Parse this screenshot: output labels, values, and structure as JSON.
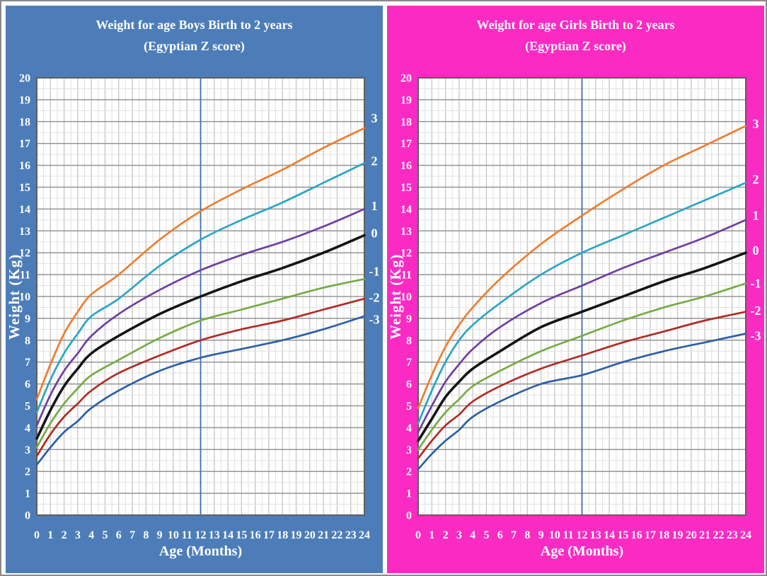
{
  "page": {
    "background_color": "#ffffff",
    "border_color": "#8a8a8a"
  },
  "chart_data": [
    {
      "type": "line",
      "title": "Weight for age Boys Birth to 2 years",
      "subtitle": "(Egyptian Z score)",
      "xlabel": "Age (Months)",
      "ylabel": "Weight (Kg)",
      "panel_color": "#4c7db8",
      "title_color": "#ffffff",
      "xlim": [
        0,
        24
      ],
      "ylim": [
        0,
        20
      ],
      "x_ticks": [
        0,
        1,
        2,
        3,
        4,
        5,
        6,
        7,
        8,
        9,
        10,
        11,
        12,
        13,
        14,
        15,
        16,
        17,
        18,
        19,
        20,
        21,
        22,
        23,
        24
      ],
      "y_ticks": [
        0,
        1,
        2,
        3,
        4,
        5,
        6,
        7,
        8,
        9,
        10,
        11,
        12,
        13,
        14,
        15,
        16,
        17,
        18,
        19,
        20
      ],
      "grid": {
        "minor_step": 0.5,
        "major_step": 1,
        "minor_color": "#e0e0e0",
        "major_h_color": "#959595",
        "major_v_color": "#c0c0c0",
        "border_color": "#5f5f5f"
      },
      "reference_line": {
        "x": 12,
        "color": "#3a6db5"
      },
      "x": [
        0,
        1,
        2,
        3,
        4,
        6,
        9,
        12,
        15,
        18,
        21,
        24
      ],
      "series": [
        {
          "name": "+3 SD",
          "label": "3",
          "color": "#ee7d2f",
          "label_y": 18.15,
          "values": [
            5.3,
            6.9,
            8.3,
            9.3,
            10.1,
            11.0,
            12.6,
            13.9,
            14.9,
            15.8,
            16.8,
            17.7
          ]
        },
        {
          "name": "+2 SD",
          "label": "2",
          "color": "#2aa6c4",
          "label_y": 16.2,
          "values": [
            4.7,
            6.2,
            7.4,
            8.3,
            9.1,
            9.9,
            11.4,
            12.6,
            13.5,
            14.3,
            15.2,
            16.1
          ]
        },
        {
          "name": "+1 SD",
          "label": "1",
          "color": "#6f3fa2",
          "label_y": 14.15,
          "values": [
            4.1,
            5.5,
            6.6,
            7.4,
            8.2,
            9.2,
            10.3,
            11.2,
            11.9,
            12.5,
            13.2,
            14.0
          ]
        },
        {
          "name": "0 SD (median)",
          "label": "0",
          "color": "#141414",
          "label_y": 12.9,
          "values": [
            3.5,
            4.8,
            5.9,
            6.7,
            7.4,
            8.2,
            9.2,
            10.0,
            10.7,
            11.3,
            12.0,
            12.8
          ]
        },
        {
          "name": "-1 SD",
          "label": "-1",
          "color": "#74ac44",
          "label_y": 11.15,
          "values": [
            3.1,
            4.2,
            5.1,
            5.8,
            6.4,
            7.1,
            8.1,
            8.9,
            9.4,
            9.9,
            10.4,
            10.8
          ]
        },
        {
          "name": "-2 SD",
          "label": "-2",
          "color": "#b02b25",
          "label_y": 9.95,
          "values": [
            2.7,
            3.7,
            4.5,
            5.1,
            5.7,
            6.5,
            7.3,
            8.0,
            8.5,
            8.9,
            9.4,
            9.9
          ]
        },
        {
          "name": "-3 SD",
          "label": "-3",
          "color": "#2c5fa6",
          "label_y": 8.95,
          "values": [
            2.3,
            3.1,
            3.8,
            4.3,
            4.9,
            5.7,
            6.6,
            7.2,
            7.6,
            8.0,
            8.5,
            9.1
          ]
        }
      ]
    },
    {
      "type": "line",
      "title": "Weight for age Girls Birth to 2 years",
      "subtitle": "(Egyptian Z score)",
      "xlabel": "Age (Months)",
      "ylabel": "Weight (Kg)",
      "panel_color": "#f92bc3",
      "title_color": "#ffffff",
      "xlim": [
        0,
        24
      ],
      "ylim": [
        0,
        20
      ],
      "x_ticks": [
        0,
        1,
        2,
        3,
        4,
        5,
        6,
        7,
        8,
        9,
        10,
        11,
        12,
        13,
        14,
        15,
        16,
        17,
        18,
        19,
        20,
        21,
        22,
        23,
        24
      ],
      "y_ticks": [
        0,
        1,
        2,
        3,
        4,
        5,
        6,
        7,
        8,
        9,
        10,
        11,
        12,
        13,
        14,
        15,
        16,
        17,
        18,
        19,
        20
      ],
      "grid": {
        "minor_step": 0.5,
        "major_step": 1,
        "minor_color": "#e0e0e0",
        "major_h_color": "#959595",
        "major_v_color": "#c0c0c0",
        "border_color": "#5f5f5f"
      },
      "reference_line": {
        "x": 12,
        "color": "#3a6db5"
      },
      "x": [
        0,
        1,
        2,
        3,
        4,
        6,
        9,
        12,
        15,
        18,
        21,
        24
      ],
      "series": [
        {
          "name": "+3 SD",
          "label": "3",
          "color": "#ee7d2f",
          "label_y": 17.9,
          "values": [
            4.9,
            6.4,
            7.7,
            8.7,
            9.5,
            10.8,
            12.4,
            13.7,
            14.9,
            16.0,
            16.9,
            17.8
          ]
        },
        {
          "name": "+2 SD",
          "label": "2",
          "color": "#2aa6c4",
          "label_y": 15.35,
          "values": [
            4.2,
            5.7,
            7.0,
            8.0,
            8.7,
            9.7,
            11.0,
            12.0,
            12.8,
            13.6,
            14.4,
            15.2
          ]
        },
        {
          "name": "+1 SD",
          "label": "1",
          "color": "#6f3fa2",
          "label_y": 13.7,
          "values": [
            3.8,
            5.0,
            6.1,
            6.9,
            7.6,
            8.6,
            9.7,
            10.5,
            11.3,
            12.0,
            12.7,
            13.5
          ]
        },
        {
          "name": "0 SD (median)",
          "label": "0",
          "color": "#141414",
          "label_y": 12.1,
          "values": [
            3.4,
            4.4,
            5.4,
            6.1,
            6.7,
            7.5,
            8.6,
            9.3,
            10.0,
            10.7,
            11.3,
            12.0
          ]
        },
        {
          "name": "-1 SD",
          "label": "-1",
          "color": "#74ac44",
          "label_y": 10.6,
          "values": [
            3.0,
            3.9,
            4.7,
            5.3,
            5.9,
            6.6,
            7.5,
            8.2,
            8.9,
            9.5,
            10.0,
            10.6
          ]
        },
        {
          "name": "-2 SD",
          "label": "-2",
          "color": "#b02b25",
          "label_y": 9.35,
          "values": [
            2.6,
            3.4,
            4.1,
            4.6,
            5.2,
            5.9,
            6.7,
            7.3,
            7.9,
            8.4,
            8.9,
            9.3
          ]
        },
        {
          "name": "-3 SD",
          "label": "-3",
          "color": "#2c5fa6",
          "label_y": 8.2,
          "values": [
            2.1,
            2.8,
            3.4,
            3.9,
            4.5,
            5.2,
            6.0,
            6.4,
            7.0,
            7.5,
            7.9,
            8.3
          ]
        }
      ]
    }
  ]
}
